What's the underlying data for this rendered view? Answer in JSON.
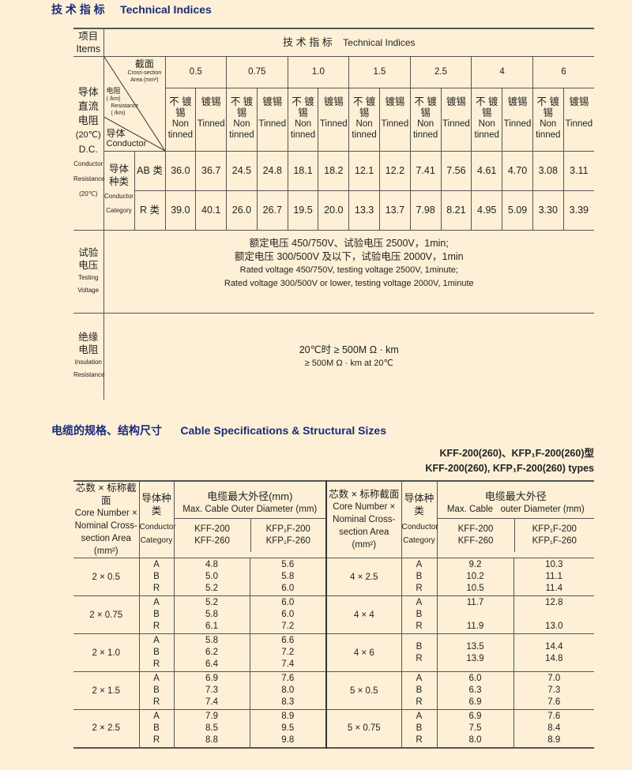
{
  "section1_title": {
    "zh": "技 术 指 标",
    "en": "Technical Indices"
  },
  "tech": {
    "items_zh": "项目",
    "items_en": "Items",
    "header_zh": "技 术 指 标",
    "header_en": "Technical Indices",
    "dc": {
      "zh": [
        "导体",
        "直流",
        "电阻",
        "(20℃)"
      ],
      "en": [
        "D.C.",
        "Conductor",
        "Resistance",
        "(20℃)"
      ]
    },
    "diag": {
      "area_zh": "截面",
      "area_en1": "Cross-section",
      "area_en2": "Area (mm²)",
      "res_zh": "电阻",
      "res_unit": "( /km)",
      "res_en": "Resistance",
      "res_unit2": "( /km)",
      "cond_zh": "导体",
      "cond_en": "Conductor"
    },
    "areas": [
      "0.5",
      "0.75",
      "1.0",
      "1.5",
      "2.5",
      "4",
      "6"
    ],
    "non_tinned": {
      "zh1": "不 镀",
      "zh2": "锡",
      "en1": "Non",
      "en2": "tinned"
    },
    "tinned": {
      "zh": "镀锡",
      "en": "Tinned"
    },
    "category": {
      "zh1": "导体",
      "zh2": "种类",
      "en1": "Conductor",
      "en2": "Category"
    },
    "rows": [
      {
        "label": "AB 类",
        "values": [
          "36.0",
          "36.7",
          "24.5",
          "24.8",
          "18.1",
          "18.2",
          "12.1",
          "12.2",
          "7.41",
          "7.56",
          "4.61",
          "4.70",
          "3.08",
          "3.11"
        ]
      },
      {
        "label": "R 类",
        "values": [
          "39.0",
          "40.1",
          "26.0",
          "26.7",
          "19.5",
          "20.0",
          "13.3",
          "13.7",
          "7.98",
          "8.21",
          "4.95",
          "5.09",
          "3.30",
          "3.39"
        ]
      }
    ],
    "testing": {
      "label": [
        "试验",
        "电压",
        "Testing",
        "Voltage"
      ],
      "lines": [
        "额定电压 450/750V、试验电压 2500V，1min;",
        "额定电压 300/500V 及以下，试验电压 2000V，1min",
        "Rated voltage 450/750V, testing voltage 2500V, 1minute;",
        "Rated voltage 300/500V or lower, testing voltage 2000V, 1minute"
      ]
    },
    "insulation": {
      "label": [
        "绝缘",
        "电阻",
        "Insulation",
        "Resistance"
      ],
      "lines": [
        "20℃时 ≥ 500M Ω · km",
        "≥ 500M Ω · km at 20℃"
      ]
    }
  },
  "section2_title": {
    "zh": "电缆的规格、结构尺寸",
    "en": "Cable Specifications & Structural Sizes"
  },
  "types": {
    "zh": "KFF-200(260)、KFP₁F-200(260)型",
    "en": "KFF-200(260), KFP₁F-200(260) types"
  },
  "spec": {
    "left_header": {
      "core": [
        "芯数 × 标称截面",
        "Core Number ×",
        "Nominal Cross-",
        "section Area",
        "(mm²)"
      ],
      "cat": [
        "导体种",
        "类",
        "Conductor",
        "Category"
      ],
      "diam_zh": "电缆最大外径(mm)",
      "diam_en": "Max. Cable Outer Diameter (mm)",
      "kff": [
        "KFF-200",
        "KFF-260"
      ],
      "kfp": [
        "KFP₁F-200",
        "KFP₁F-260"
      ]
    },
    "right_header": {
      "core": [
        "芯数 × 标称截面",
        "Core Number ×",
        "Nominal Cross-",
        "section Area",
        "(mm²)"
      ],
      "cat": [
        "导体种",
        "类",
        "Conductor",
        "Category"
      ],
      "diam_zh": "电缆最大外径",
      "diam_en": "Max. Cable   outer Diameter (mm)",
      "kff": [
        "KFF-200",
        "KFF-260"
      ],
      "kfp": [
        "KFP₁F-200",
        "KFP₁F-260"
      ]
    },
    "left_rows": [
      {
        "size": "2 × 0.5",
        "cats": [
          "A",
          "B",
          "R"
        ],
        "kff": [
          "4.8",
          "5.0",
          "5.2"
        ],
        "kfp": [
          "5.6",
          "5.8",
          "6.0"
        ]
      },
      {
        "size": "2 × 0.75",
        "cats": [
          "A",
          "B",
          "R"
        ],
        "kff": [
          "5.2",
          "5.8",
          "6.1"
        ],
        "kfp": [
          "6.0",
          "6.0",
          "7.2"
        ]
      },
      {
        "size": "2 × 1.0",
        "cats": [
          "A",
          "B",
          "R"
        ],
        "kff": [
          "5.8",
          "6.2",
          "6.4"
        ],
        "kfp": [
          "6.6",
          "7.2",
          "7.4"
        ]
      },
      {
        "size": "2 × 1.5",
        "cats": [
          "A",
          "B",
          "R"
        ],
        "kff": [
          "6.9",
          "7.3",
          "7.4"
        ],
        "kfp": [
          "7.6",
          "8.0",
          "8.3"
        ]
      },
      {
        "size": "2 × 2.5",
        "cats": [
          "A",
          "B",
          "R"
        ],
        "kff": [
          "7.9",
          "8.5",
          "8.8"
        ],
        "kfp": [
          "8.9",
          "9.5",
          "9.8"
        ]
      }
    ],
    "right_rows": [
      {
        "size": "4 × 2.5",
        "cats": [
          "A",
          "B",
          "R"
        ],
        "kff": [
          "9.2",
          "10.2",
          "10.5"
        ],
        "kfp": [
          "10.3",
          "11.1",
          "11.4"
        ]
      },
      {
        "size": "4 × 4",
        "cats": [
          "A",
          "B",
          "R"
        ],
        "kff": [
          "11.7",
          "",
          "11.9"
        ],
        "kfp": [
          "12.8",
          "",
          "13.0"
        ]
      },
      {
        "size": "4 × 6",
        "cats": [
          "B",
          "R"
        ],
        "kff": [
          "13.5",
          "13.9"
        ],
        "kfp": [
          "14.4",
          "14.8"
        ]
      },
      {
        "size": "5 × 0.5",
        "cats": [
          "A",
          "B",
          "R"
        ],
        "kff": [
          "6.0",
          "6.3",
          "6.9"
        ],
        "kfp": [
          "7.0",
          "7.3",
          "7.6"
        ]
      },
      {
        "size": "5 × 0.75",
        "cats": [
          "A",
          "B",
          "R"
        ],
        "kff": [
          "6.9",
          "7.5",
          "8.0"
        ],
        "kfp": [
          "7.6",
          "8.4",
          "8.9"
        ]
      }
    ]
  },
  "colors": {
    "background": "#fdf0d6",
    "title": "#1c2a78",
    "rule": "#555555"
  }
}
